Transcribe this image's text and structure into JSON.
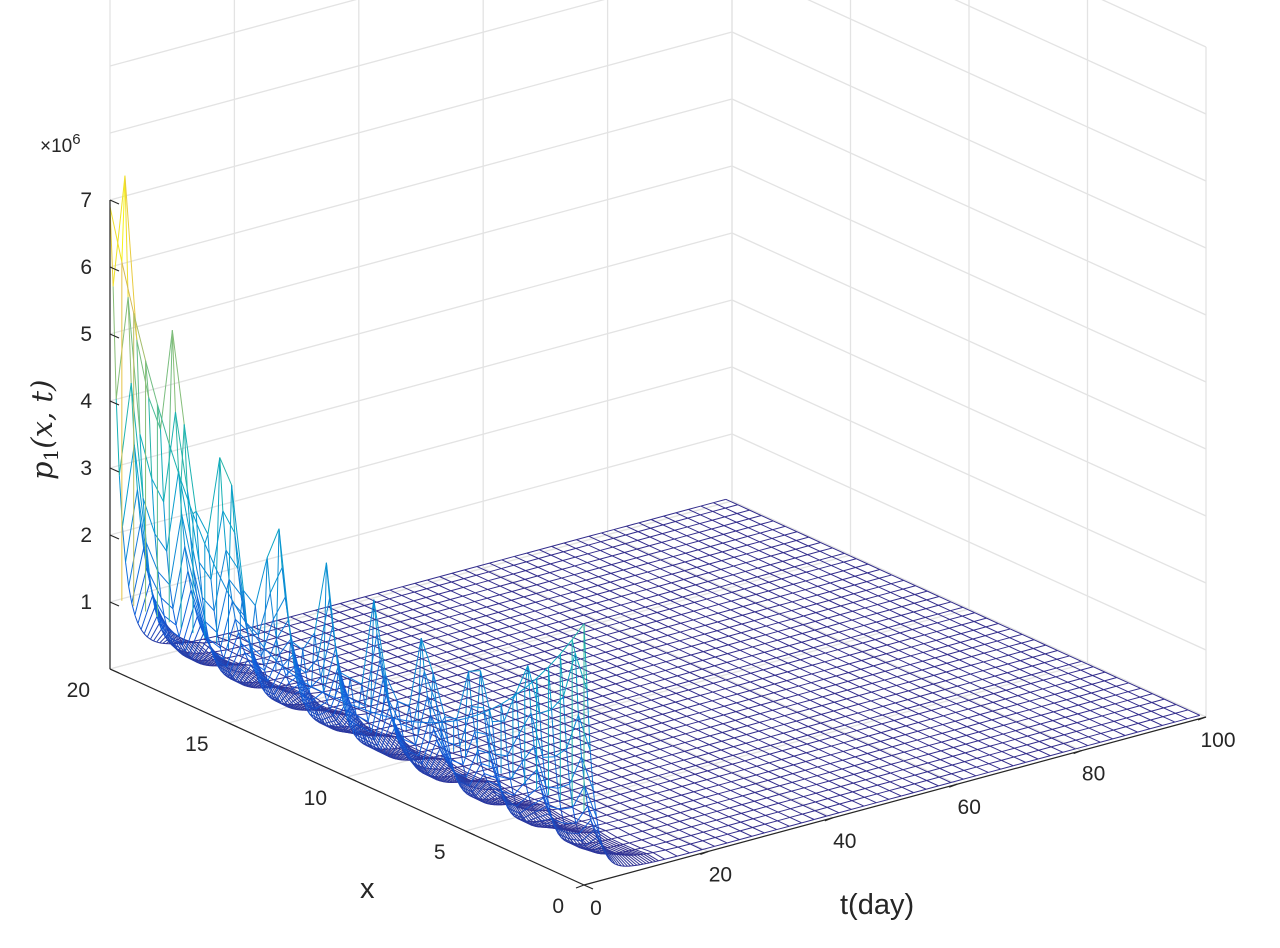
{
  "chart_data": {
    "type": "surface-mesh",
    "zlabel": "p1(x,t)",
    "zlabel_parts": {
      "base": "p",
      "sub": "1",
      "rest": "(x, t)"
    },
    "xlabel": "t(day)",
    "ylabel": "x",
    "z_multiplier": {
      "prefix": "×10",
      "exponent": "6"
    },
    "t_ticks": [
      "0",
      "20",
      "40",
      "60",
      "80",
      "100"
    ],
    "x_ticks": [
      "0",
      "5",
      "10",
      "15",
      "20"
    ],
    "z_ticks": [
      "1",
      "2",
      "3",
      "4",
      "5",
      "6",
      "7"
    ],
    "t_range": [
      0,
      100
    ],
    "x_range": [
      0,
      20
    ],
    "z_range": [
      0,
      7
    ],
    "grid": true,
    "colormap": "parula",
    "surface": {
      "description_values": {
        "peak_at_t0_x20": 6.9,
        "peak_at_t0_x0": 3.9,
        "floor_at_t0": 1.1,
        "oscillation_peaks_along_x_at_t0_to_10": [
          3.3,
          3.1,
          3.0,
          2.8,
          2.7,
          2.5,
          2.6,
          2.3,
          2.2,
          2.0
        ],
        "steady_state_level": 0.0
      }
    }
  }
}
